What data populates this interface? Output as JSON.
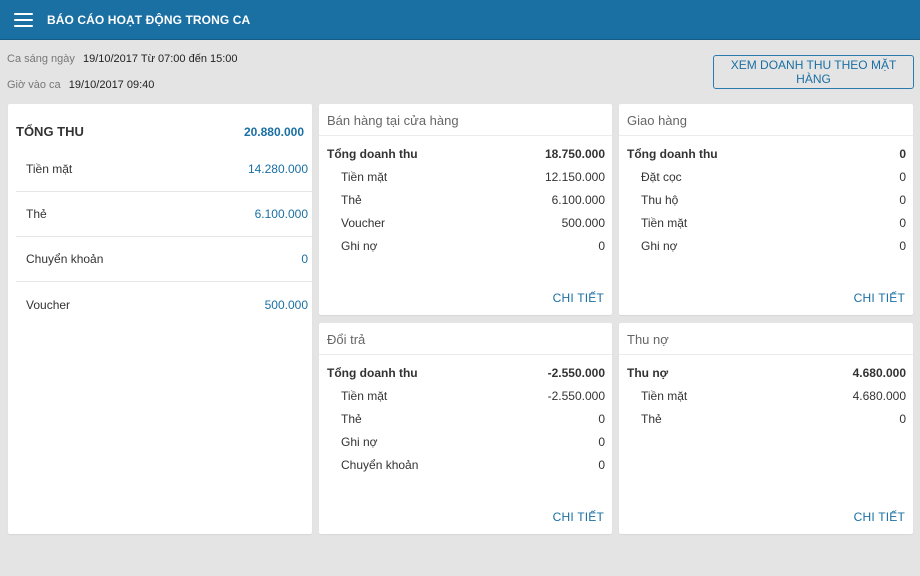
{
  "header": {
    "title": "BÁO CÁO HOẠT ĐỘNG TRONG CA"
  },
  "shift": {
    "shift_label": "Ca sáng ngày",
    "shift_value": "19/10/2017 Từ 07:00 đến 15:00",
    "checkin_label": "Giờ vào ca",
    "checkin_value": "19/10/2017 09:40"
  },
  "view_by_item_button": "XEM DOANH THU THEO MẶT HÀNG",
  "total": {
    "label": "TỔNG THU",
    "value": "20.880.000",
    "rows": [
      {
        "label": "Tiền mặt",
        "value": "14.280.000"
      },
      {
        "label": "Thẻ",
        "value": "6.100.000"
      },
      {
        "label": "Chuyển khoản",
        "value": "0"
      },
      {
        "label": "Voucher",
        "value": "500.000"
      }
    ]
  },
  "store_sales": {
    "title": "Bán hàng tại cửa hàng",
    "main_label": "Tổng doanh thu",
    "main_value": "18.750.000",
    "rows": [
      {
        "label": "Tiền mặt",
        "value": "12.150.000"
      },
      {
        "label": "Thẻ",
        "value": "6.100.000"
      },
      {
        "label": "Voucher",
        "value": "500.000"
      },
      {
        "label": "Ghi nợ",
        "value": "0"
      }
    ],
    "detail": "CHI TIẾT"
  },
  "delivery": {
    "title": "Giao hàng",
    "main_label": "Tổng doanh thu",
    "main_value": "0",
    "rows": [
      {
        "label": "Đặt cọc",
        "value": "0"
      },
      {
        "label": "Thu hộ",
        "value": "0"
      },
      {
        "label": "Tiền mặt",
        "value": "0"
      },
      {
        "label": "Ghi nợ",
        "value": "0"
      }
    ],
    "detail": "CHI TIẾT"
  },
  "returns": {
    "title": "Đổi trả",
    "main_label": "Tổng doanh thu",
    "main_value": "-2.550.000",
    "rows": [
      {
        "label": "Tiền mặt",
        "value": "-2.550.000"
      },
      {
        "label": "Thẻ",
        "value": "0"
      },
      {
        "label": "Ghi nợ",
        "value": "0"
      },
      {
        "label": "Chuyển khoản",
        "value": "0"
      }
    ],
    "detail": "CHI TIẾT"
  },
  "debt_collection": {
    "title": "Thu nợ",
    "main_label": "Thu nợ",
    "main_value": "4.680.000",
    "rows": [
      {
        "label": "Tiền mặt",
        "value": "4.680.000"
      },
      {
        "label": "Thẻ",
        "value": "0"
      }
    ],
    "detail": "CHI TIẾT"
  },
  "colors": {
    "primary": "#1a6fa3",
    "background": "#e4e4e4",
    "card": "#ffffff"
  },
  "icons": {
    "menu": "hamburger-menu-icon"
  }
}
